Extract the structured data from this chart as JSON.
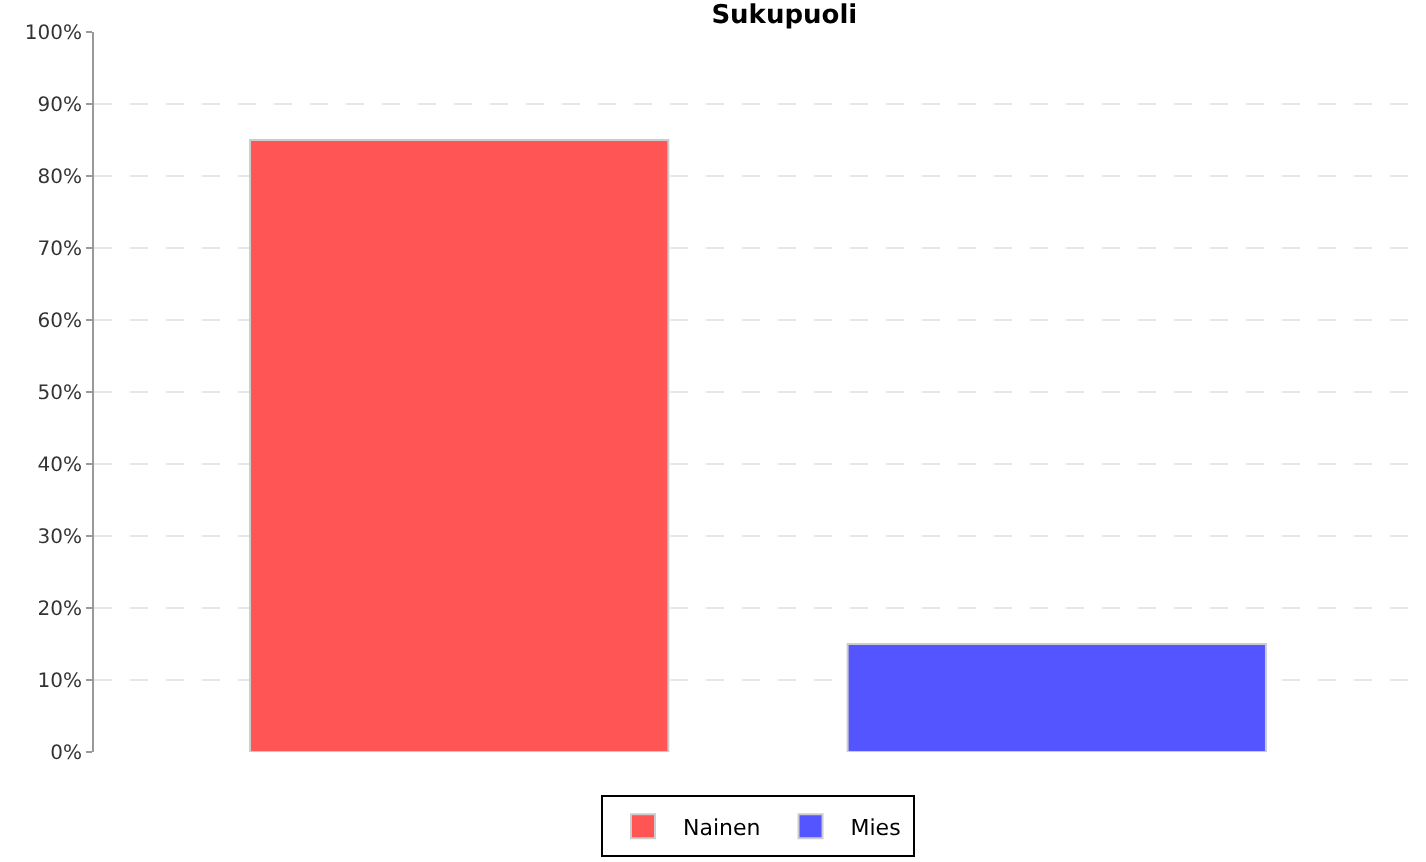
{
  "chart_data": {
    "type": "bar",
    "title": "Sukupuoli",
    "categories": [
      null
    ],
    "series": [
      {
        "name": "Nainen",
        "color": "#ff5555",
        "values": [
          85
        ]
      },
      {
        "name": "Mies",
        "color": "#5555ff",
        "values": [
          15
        ]
      }
    ],
    "ylim": [
      0,
      100
    ],
    "yticks": [
      {
        "value": 0,
        "label": "0%"
      },
      {
        "value": 10,
        "label": "10%"
      },
      {
        "value": 20,
        "label": "20%"
      },
      {
        "value": 30,
        "label": "30%"
      },
      {
        "value": 40,
        "label": "40%"
      },
      {
        "value": 50,
        "label": "50%"
      },
      {
        "value": 60,
        "label": "60%"
      },
      {
        "value": 70,
        "label": "70%"
      },
      {
        "value": 80,
        "label": "80%"
      },
      {
        "value": 90,
        "label": "90%"
      },
      {
        "value": 100,
        "label": "100%"
      }
    ],
    "grid": "y",
    "legend": "bottom"
  }
}
